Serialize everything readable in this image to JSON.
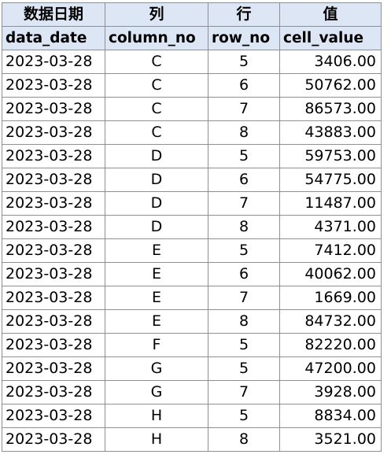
{
  "headers_cn": [
    "数据日期",
    "列",
    "行",
    "值"
  ],
  "headers_en": [
    "data_date",
    "column_no",
    "row_no",
    "cell_value"
  ],
  "rows": [
    {
      "data_date": "2023-03-28",
      "column_no": "C",
      "row_no": "5",
      "cell_value": "3406.00"
    },
    {
      "data_date": "2023-03-28",
      "column_no": "C",
      "row_no": "6",
      "cell_value": "50762.00"
    },
    {
      "data_date": "2023-03-28",
      "column_no": "C",
      "row_no": "7",
      "cell_value": "86573.00"
    },
    {
      "data_date": "2023-03-28",
      "column_no": "C",
      "row_no": "8",
      "cell_value": "43883.00"
    },
    {
      "data_date": "2023-03-28",
      "column_no": "D",
      "row_no": "5",
      "cell_value": "59753.00"
    },
    {
      "data_date": "2023-03-28",
      "column_no": "D",
      "row_no": "6",
      "cell_value": "54775.00"
    },
    {
      "data_date": "2023-03-28",
      "column_no": "D",
      "row_no": "7",
      "cell_value": "11487.00"
    },
    {
      "data_date": "2023-03-28",
      "column_no": "D",
      "row_no": "8",
      "cell_value": "4371.00"
    },
    {
      "data_date": "2023-03-28",
      "column_no": "E",
      "row_no": "5",
      "cell_value": "7412.00"
    },
    {
      "data_date": "2023-03-28",
      "column_no": "E",
      "row_no": "6",
      "cell_value": "40062.00"
    },
    {
      "data_date": "2023-03-28",
      "column_no": "E",
      "row_no": "7",
      "cell_value": "1669.00"
    },
    {
      "data_date": "2023-03-28",
      "column_no": "E",
      "row_no": "8",
      "cell_value": "84732.00"
    },
    {
      "data_date": "2023-03-28",
      "column_no": "F",
      "row_no": "5",
      "cell_value": "82220.00"
    },
    {
      "data_date": "2023-03-28",
      "column_no": "G",
      "row_no": "5",
      "cell_value": "47200.00"
    },
    {
      "data_date": "2023-03-28",
      "column_no": "G",
      "row_no": "7",
      "cell_value": "3928.00"
    },
    {
      "data_date": "2023-03-28",
      "column_no": "H",
      "row_no": "5",
      "cell_value": "8834.00"
    },
    {
      "data_date": "2023-03-28",
      "column_no": "H",
      "row_no": "8",
      "cell_value": "3521.00"
    }
  ],
  "colors": {
    "header_fill": "#dde6f4",
    "grid": "#8f8f8f"
  }
}
